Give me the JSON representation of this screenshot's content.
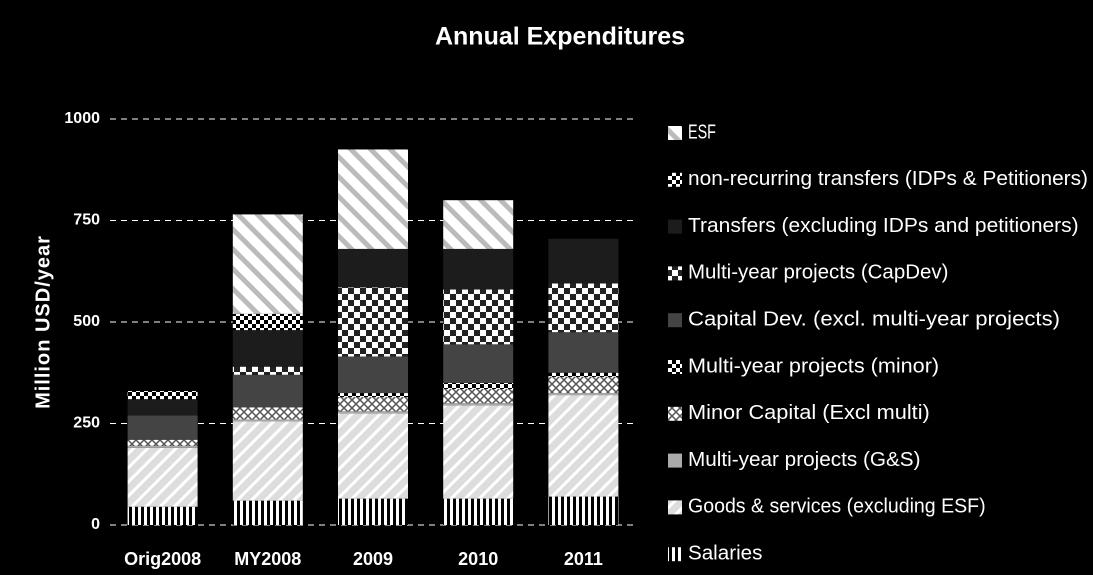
{
  "chart_data": {
    "type": "stacked_bar",
    "title": "Annual Expenditures",
    "y_label": "Million USD/year",
    "categories": [
      "Orig2008",
      "MY2008",
      "2009",
      "2010",
      "2011"
    ],
    "ylim": [
      0,
      1000
    ],
    "yticks": [
      0,
      250,
      500,
      750,
      1000
    ],
    "grid": true,
    "legend": "right",
    "series": [
      {
        "name": "Salaries",
        "pattern": "vertical",
        "values": [
          45,
          60,
          65,
          65,
          70
        ]
      },
      {
        "name": "Goods & services (excluding ESF)",
        "pattern": "diagonal",
        "values": [
          145,
          195,
          210,
          230,
          250
        ]
      },
      {
        "name": "Multi-year projects (G&S)",
        "pattern": "solid-light",
        "values": [
          5,
          5,
          5,
          5,
          5
        ]
      },
      {
        "name": "Minor Capital (Excl multi)",
        "pattern": "crosshatch",
        "values": [
          15,
          30,
          35,
          35,
          40
        ]
      },
      {
        "name": "Multi-year projects (minor)",
        "pattern": "checker",
        "values": [
          0,
          0,
          10,
          15,
          10
        ]
      },
      {
        "name": "Capital Dev. (excl. multi-year projects)",
        "pattern": "solid-gray",
        "values": [
          60,
          80,
          90,
          95,
          100
        ]
      },
      {
        "name": "Multi-year projects (CapDev)",
        "pattern": "checker-large",
        "values": [
          0,
          20,
          170,
          135,
          120
        ]
      },
      {
        "name": "Transfers (excluding IDPs and petitioners)",
        "pattern": "solid-dark",
        "values": [
          40,
          90,
          95,
          100,
          110
        ]
      },
      {
        "name": "non-recurring transfers (IDPs & Petitioners)",
        "pattern": "checker",
        "values": [
          20,
          40,
          0,
          0,
          0
        ]
      },
      {
        "name": "ESF",
        "pattern": "diagonal-reverse",
        "values": [
          0,
          245,
          245,
          120,
          0
        ]
      }
    ]
  }
}
